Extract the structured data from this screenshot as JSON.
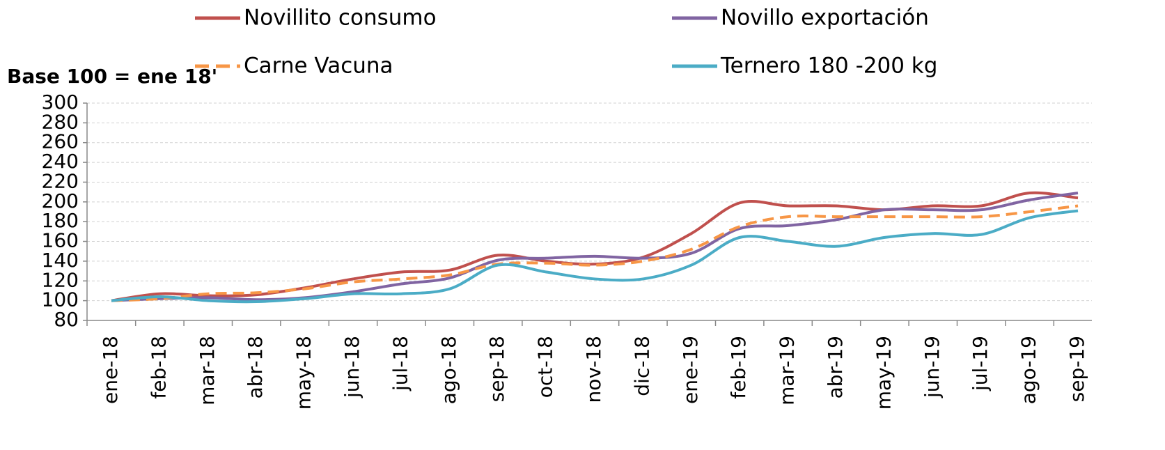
{
  "chart_data": {
    "type": "line",
    "ylabel": "Base 100 = ene 18'",
    "categories": [
      "ene-18",
      "feb-18",
      "mar-18",
      "abr-18",
      "may-18",
      "jun-18",
      "jul-18",
      "ago-18",
      "sep-18",
      "oct-18",
      "nov-18",
      "dic-18",
      "ene-19",
      "feb-19",
      "mar-19",
      "abr-19",
      "may-19",
      "jun-19",
      "jul-19",
      "ago-19",
      "sep-19"
    ],
    "series": [
      {
        "name": "Novillito consumo",
        "color": "#c0504d",
        "values": [
          100,
          107,
          105,
          106,
          113,
          122,
          129,
          131,
          146,
          140,
          137,
          144,
          168,
          199,
          196,
          196,
          192,
          196,
          196,
          209,
          204
        ]
      },
      {
        "name": "Novillo exportación",
        "color": "#8064a2",
        "values": [
          100,
          102,
          103,
          101,
          103,
          109,
          117,
          123,
          141,
          143,
          145,
          143,
          148,
          173,
          176,
          182,
          192,
          192,
          192,
          202,
          209
        ]
      },
      {
        "name": "Carne Vacuna",
        "color": "#f79646",
        "dashed": true,
        "values": [
          100,
          102,
          107,
          108,
          112,
          119,
          122,
          126,
          137,
          138,
          136,
          140,
          152,
          175,
          185,
          185,
          185,
          185,
          185,
          190,
          196
        ]
      },
      {
        "name": "Ternero 180 -200 kg",
        "color": "#4bacc6",
        "values": [
          100,
          104,
          100,
          99,
          102,
          107,
          107,
          112,
          136,
          129,
          122,
          122,
          136,
          164,
          160,
          155,
          164,
          168,
          167,
          184,
          191
        ]
      }
    ],
    "ylim": [
      80,
      300
    ],
    "yticks": [
      80,
      100,
      120,
      140,
      160,
      180,
      200,
      220,
      240,
      260,
      280,
      300
    ],
    "grid": true
  }
}
